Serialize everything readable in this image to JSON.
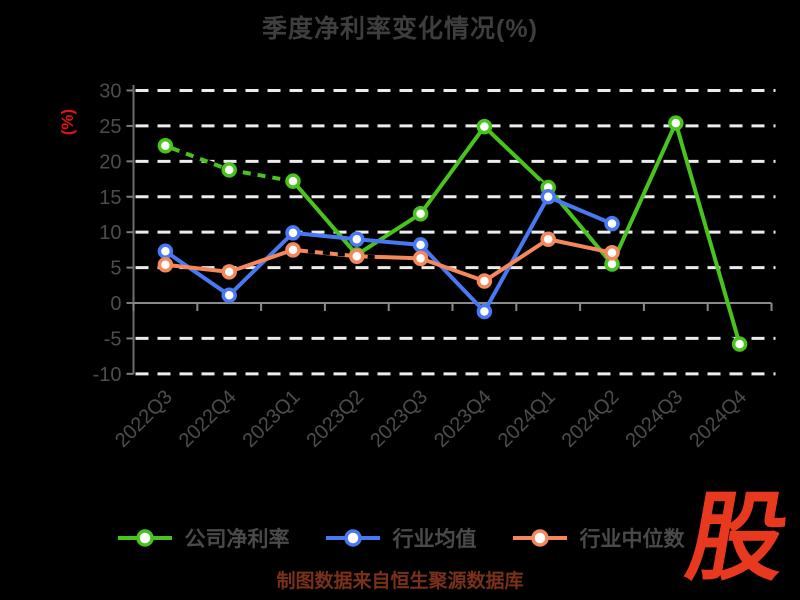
{
  "page": {
    "background": "#000000"
  },
  "title": {
    "text": "季度净利率变化情况(%)",
    "color": "#3e3e3e"
  },
  "y_axis": {
    "unit_label": "(%)",
    "unit_color": "#e01212",
    "tick_labels": [
      "30",
      "25",
      "20",
      "15",
      "10",
      "5",
      "0",
      "-5",
      "-10"
    ],
    "label_color": "#4d4d4d"
  },
  "x_axis": {
    "labels": [
      "2022Q3",
      "2022Q4",
      "2023Q1",
      "2023Q2",
      "2023Q3",
      "2023Q4",
      "2024Q1",
      "2024Q2",
      "2024Q3",
      "2024Q4"
    ],
    "label_color": "#4d4d4d"
  },
  "source_note": {
    "text": "制图数据来自恒生聚源数据库",
    "color": "#7a301a"
  },
  "logo": {
    "text": "股",
    "color": "#e8391e"
  },
  "chart_data": {
    "type": "line",
    "title": "季度净利率变化情况(%)",
    "categories": [
      "2022Q3",
      "2022Q4",
      "2023Q1",
      "2023Q2",
      "2023Q3",
      "2023Q4",
      "2024Q1",
      "2024Q2",
      "2024Q3",
      "2024Q4"
    ],
    "series": [
      {
        "name": "公司净利率",
        "color": "#49c31e",
        "values": [
          22.2,
          18.8,
          17.2,
          6.8,
          12.6,
          24.9,
          16.3,
          5.5,
          25.4,
          -5.8
        ]
      },
      {
        "name": "行业均值",
        "color": "#4979f2",
        "values": [
          7.3,
          1.1,
          9.9,
          9.0,
          8.2,
          -1.2,
          15.0,
          11.2,
          null,
          null
        ]
      },
      {
        "name": "行业中位数",
        "color": "#f4875c",
        "values": [
          5.4,
          4.4,
          7.5,
          6.6,
          6.3,
          3.1,
          9.0,
          7.1,
          null,
          null
        ]
      }
    ],
    "ylabel": "(%)",
    "ylim": [
      -10,
      30
    ],
    "y_ticks": [
      30,
      25,
      20,
      15,
      10,
      5,
      0,
      -5,
      -10
    ],
    "grid": "horizontal-white-dashed",
    "legend_position": "bottom",
    "marker": "circle-white-fill",
    "black_dash_overlays": [
      [
        [
          0,
          22.2
        ],
        [
          1,
          18.8
        ],
        [
          2,
          17.2
        ]
      ],
      [
        [
          2,
          7.5
        ],
        [
          3.3,
          6.45
        ]
      ],
      [
        [
          5.45,
          19.2
        ],
        [
          6.3,
          14.7
        ]
      ],
      [
        [
          8.8,
          -4.9
        ],
        [
          9.2,
          -6.0
        ]
      ]
    ]
  }
}
